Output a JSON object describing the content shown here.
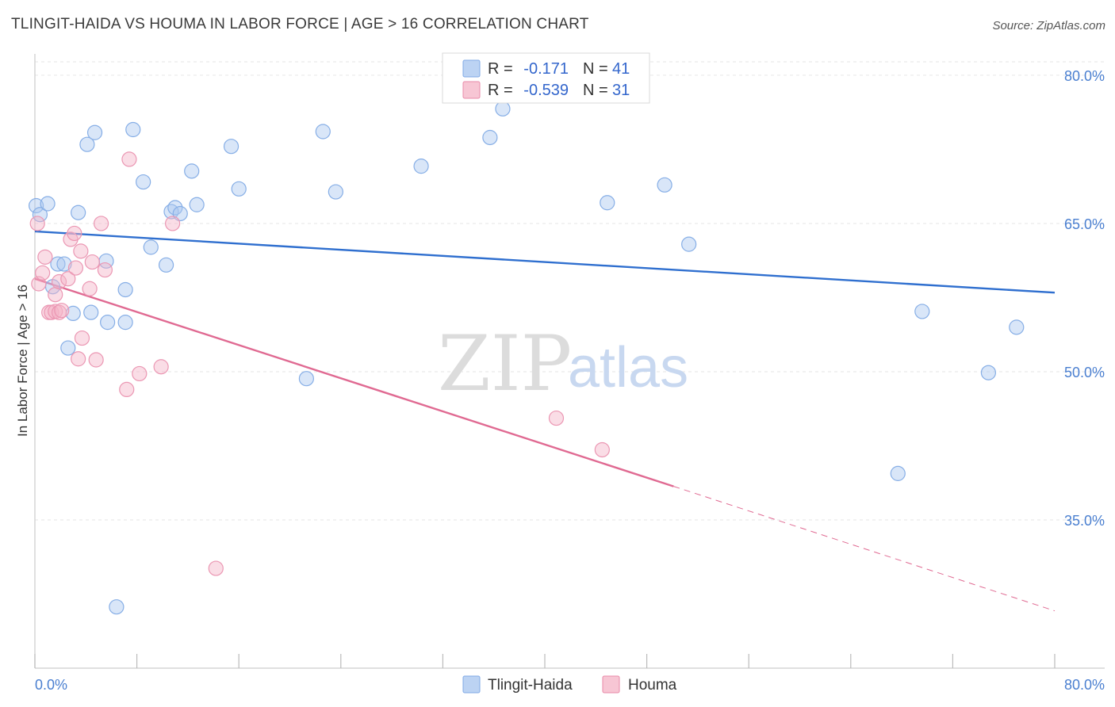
{
  "header": {
    "title": "TLINGIT-HAIDA VS HOUMA IN LABOR FORCE | AGE > 16 CORRELATION CHART",
    "source": "Source: ZipAtlas.com"
  },
  "legend": {
    "r_label": "R =",
    "n_label": "N =",
    "series": [
      {
        "name": "Tlingit-Haida",
        "r": "-0.171",
        "n": "41",
        "color": "#7fa9e6",
        "fill": "#bcd3f3"
      },
      {
        "name": "Houma",
        "r": "-0.539",
        "n": "31",
        "color": "#e98aa8",
        "fill": "#f7c6d4"
      }
    ]
  },
  "watermark": {
    "zip": "ZIP",
    "atlas": "atlas"
  },
  "chart_data": {
    "type": "scatter",
    "title": "TLINGIT-HAIDA VS HOUMA IN LABOR FORCE | AGE > 16 CORRELATION CHART",
    "xlabel": "",
    "ylabel": "In Labor Force | Age > 16",
    "xlim": [
      0,
      80
    ],
    "ylim": [
      20,
      82
    ],
    "x_tick_labels": [
      "0.0%",
      "80.0%"
    ],
    "y_ticks": [
      35,
      50,
      65,
      80
    ],
    "y_tick_labels": [
      "35.0%",
      "50.0%",
      "65.0%",
      "80.0%"
    ],
    "series": [
      {
        "name": "Tlingit-Haida",
        "points": [
          [
            0.1,
            66.8
          ],
          [
            0.4,
            65.9
          ],
          [
            1.0,
            67.0
          ],
          [
            1.8,
            60.9
          ],
          [
            2.3,
            60.9
          ],
          [
            1.4,
            58.6
          ],
          [
            3.4,
            66.1
          ],
          [
            4.1,
            73.0
          ],
          [
            4.7,
            74.2
          ],
          [
            3.0,
            55.9
          ],
          [
            2.6,
            52.4
          ],
          [
            4.4,
            56.0
          ],
          [
            5.6,
            61.2
          ],
          [
            5.7,
            55.0
          ],
          [
            6.4,
            26.2
          ],
          [
            7.1,
            55.0
          ],
          [
            7.1,
            58.3
          ],
          [
            7.7,
            74.5
          ],
          [
            8.5,
            69.2
          ],
          [
            9.1,
            62.6
          ],
          [
            10.3,
            60.8
          ],
          [
            10.7,
            66.2
          ],
          [
            11.0,
            66.6
          ],
          [
            11.4,
            66.0
          ],
          [
            12.3,
            70.3
          ],
          [
            12.7,
            66.9
          ],
          [
            15.4,
            72.8
          ],
          [
            16.0,
            68.5
          ],
          [
            21.3,
            49.3
          ],
          [
            22.6,
            74.3
          ],
          [
            23.6,
            68.2
          ],
          [
            30.3,
            70.8
          ],
          [
            35.7,
            73.7
          ],
          [
            36.7,
            76.6
          ],
          [
            44.9,
            67.1
          ],
          [
            49.4,
            68.9
          ],
          [
            51.3,
            62.9
          ],
          [
            67.7,
            39.7
          ],
          [
            69.6,
            56.1
          ],
          [
            74.8,
            49.9
          ],
          [
            77.0,
            54.5
          ]
        ]
      },
      {
        "name": "Houma",
        "points": [
          [
            0.2,
            65.0
          ],
          [
            0.3,
            58.9
          ],
          [
            0.6,
            60.0
          ],
          [
            0.8,
            61.6
          ],
          [
            1.1,
            56.0
          ],
          [
            1.3,
            56.0
          ],
          [
            1.6,
            56.1
          ],
          [
            1.6,
            57.8
          ],
          [
            1.9,
            59.1
          ],
          [
            1.9,
            56.0
          ],
          [
            2.1,
            56.2
          ],
          [
            2.6,
            59.4
          ],
          [
            2.8,
            63.4
          ],
          [
            3.1,
            64.0
          ],
          [
            3.2,
            60.5
          ],
          [
            3.4,
            51.3
          ],
          [
            3.6,
            62.2
          ],
          [
            3.7,
            53.4
          ],
          [
            4.3,
            58.4
          ],
          [
            4.5,
            61.1
          ],
          [
            4.8,
            51.2
          ],
          [
            5.2,
            65.0
          ],
          [
            5.5,
            60.3
          ],
          [
            7.2,
            48.2
          ],
          [
            7.4,
            71.5
          ],
          [
            8.2,
            49.8
          ],
          [
            9.9,
            50.5
          ],
          [
            10.8,
            65.0
          ],
          [
            14.2,
            30.1
          ],
          [
            40.9,
            45.3
          ],
          [
            44.5,
            42.1
          ]
        ]
      }
    ],
    "trendlines": [
      {
        "series": "Tlingit-Haida",
        "x": [
          0,
          80
        ],
        "y": [
          64.2,
          58.0
        ],
        "style": "solid"
      },
      {
        "series": "Houma",
        "x": [
          0,
          50.1
        ],
        "y": [
          59.4,
          38.4
        ],
        "style": "solid"
      },
      {
        "series": "Houma",
        "x": [
          50.1,
          80
        ],
        "y": [
          38.4,
          25.8
        ],
        "style": "dashed"
      }
    ],
    "grid": true,
    "legend_position": "top-center"
  }
}
